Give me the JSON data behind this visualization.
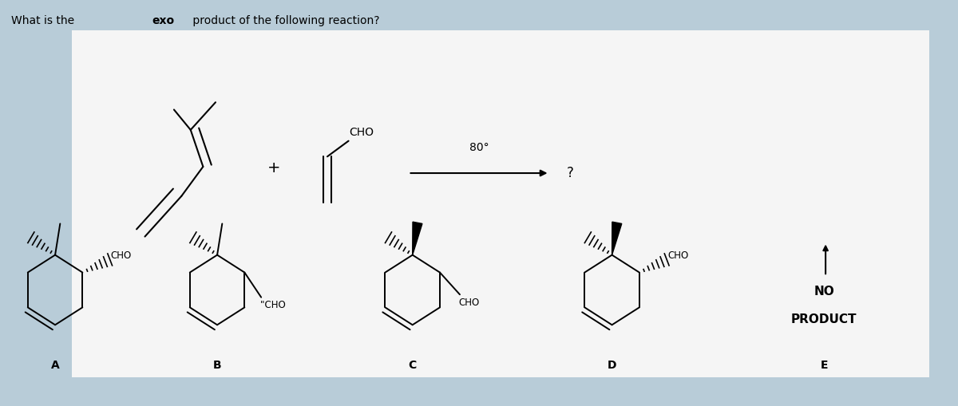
{
  "title_prefix": "What is the ",
  "title_bold": "exo",
  "title_suffix": " product of the following reaction?",
  "background_outer": "#b8ccd8",
  "background_inner": "#f5f5f5",
  "labels": [
    "A",
    "B",
    "C",
    "D",
    "E"
  ],
  "condition_temp": "80°",
  "condition_question": "?",
  "no_product_text": [
    "NO",
    "PRODUCT"
  ]
}
